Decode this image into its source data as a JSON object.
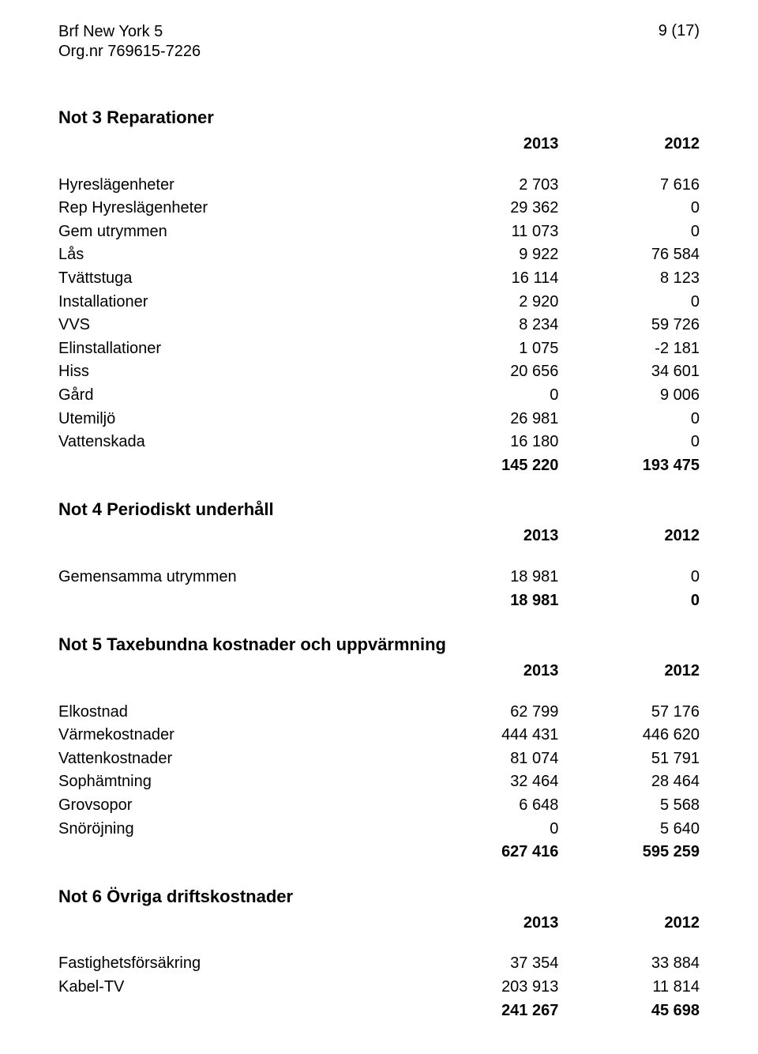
{
  "header": {
    "company_name": "Brf New York 5",
    "org_label": "Org.nr 769615-7226",
    "page_number": "9 (17)"
  },
  "years": {
    "col1": "2013",
    "col2": "2012"
  },
  "sections": [
    {
      "title": "Not 3 Reparationer",
      "rows": [
        {
          "label": "Hyreslägenheter",
          "v1": "2 703",
          "v2": "7 616"
        },
        {
          "label": "Rep Hyreslägenheter",
          "v1": "29 362",
          "v2": "0"
        },
        {
          "label": "Gem utrymmen",
          "v1": "11 073",
          "v2": "0"
        },
        {
          "label": "Lås",
          "v1": "9 922",
          "v2": "76 584"
        },
        {
          "label": "Tvättstuga",
          "v1": "16 114",
          "v2": "8 123"
        },
        {
          "label": "Installationer",
          "v1": "2 920",
          "v2": "0"
        },
        {
          "label": "VVS",
          "v1": "8 234",
          "v2": "59 726"
        },
        {
          "label": "Elinstallationer",
          "v1": "1 075",
          "v2": "-2 181"
        },
        {
          "label": "Hiss",
          "v1": "20 656",
          "v2": "34 601"
        },
        {
          "label": "Gård",
          "v1": "0",
          "v2": "9 006"
        },
        {
          "label": "Utemiljö",
          "v1": "26 981",
          "v2": "0"
        },
        {
          "label": "Vattenskada",
          "v1": "16 180",
          "v2": "0"
        }
      ],
      "total": {
        "v1": "145 220",
        "v2": "193 475"
      }
    },
    {
      "title": "Not 4 Periodiskt underhåll",
      "rows": [
        {
          "label": "Gemensamma utrymmen",
          "v1": "18 981",
          "v2": "0"
        }
      ],
      "total": {
        "v1": "18 981",
        "v2": "0"
      }
    },
    {
      "title": "Not 5 Taxebundna kostnader och uppvärmning",
      "rows": [
        {
          "label": "Elkostnad",
          "v1": "62 799",
          "v2": "57 176"
        },
        {
          "label": "Värmekostnader",
          "v1": "444 431",
          "v2": "446 620"
        },
        {
          "label": "Vattenkostnader",
          "v1": "81 074",
          "v2": "51 791"
        },
        {
          "label": "Sophämtning",
          "v1": "32 464",
          "v2": "28 464"
        },
        {
          "label": "Grovsopor",
          "v1": "6 648",
          "v2": "5 568"
        },
        {
          "label": "Snöröjning",
          "v1": "0",
          "v2": "5 640"
        }
      ],
      "total": {
        "v1": "627 416",
        "v2": "595 259"
      }
    },
    {
      "title": "Not 6 Övriga driftskostnader",
      "rows": [
        {
          "label": "Fastighetsförsäkring",
          "v1": "37 354",
          "v2": "33 884"
        },
        {
          "label": "Kabel-TV",
          "v1": "203 913",
          "v2": "11 814"
        }
      ],
      "total": {
        "v1": "241 267",
        "v2": "45 698"
      }
    }
  ]
}
